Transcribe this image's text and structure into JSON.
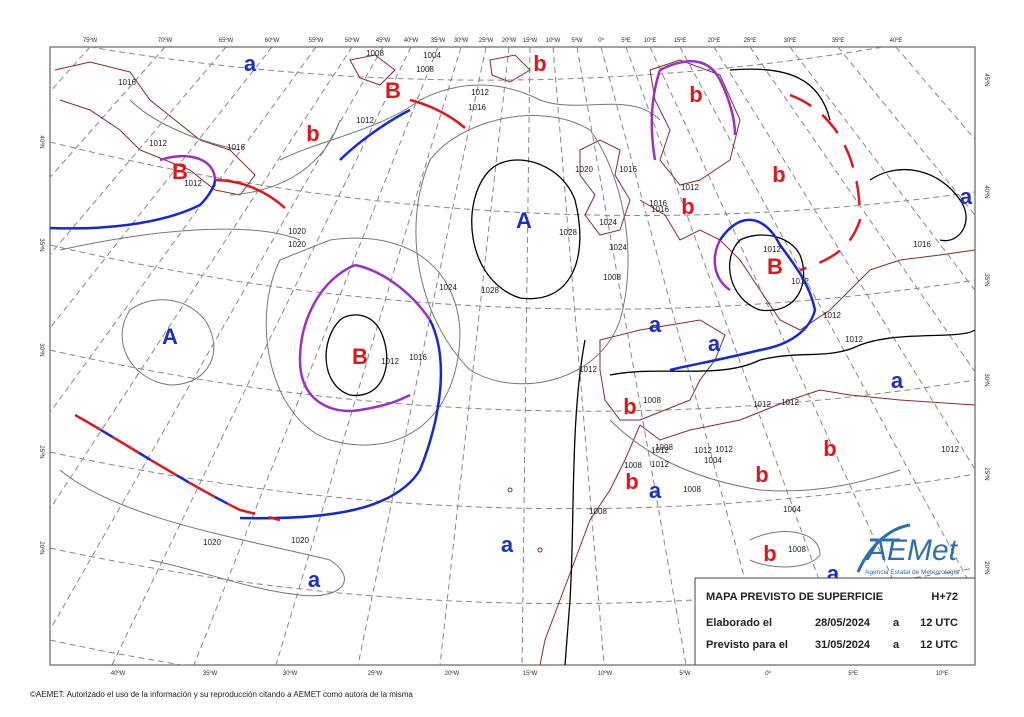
{
  "top_axis_labels": [
    "75ºW",
    "70ºW",
    "65ºW",
    "60ºW",
    "55ºW",
    "50ºW",
    "45ºW",
    "40ºW",
    "35ºW",
    "30ºW",
    "25ºW",
    "20ºW",
    "15ºW",
    "10ºW",
    "5ºW",
    "0º",
    "5ºE",
    "10ºE",
    "15ºE",
    "20ºE",
    "25ºE",
    "30ºE",
    "35ºE",
    "40ºE"
  ],
  "bottom_axis_labels": [
    "40ºW",
    "35ºW",
    "30ºW",
    "25ºW",
    "20ºW",
    "15ºW",
    "10ºW",
    "5ºW",
    "0º",
    "5ºE",
    "10ºE"
  ],
  "right_axis_labels": [
    "45ºN",
    "40ºN",
    "35ºN",
    "30ºN",
    "25ºN",
    "20ºN"
  ],
  "left_axis_labels": [
    "40ºN",
    "35ºN",
    "30ºN",
    "25ºN",
    "20ºN"
  ],
  "pressure_centers": [
    {
      "label": "a",
      "color": "#1a2fc8"
    },
    {
      "label": "b",
      "color": "#e0161b"
    },
    {
      "label": "B",
      "color": "#e0161b"
    },
    {
      "label": "b",
      "color": "#e0161b"
    },
    {
      "label": "b",
      "color": "#e0161b"
    },
    {
      "label": "B",
      "color": "#e0161b"
    },
    {
      "label": "b",
      "color": "#e0161b"
    },
    {
      "label": "b",
      "color": "#e0161b"
    },
    {
      "label": "A",
      "color": "#1a2fc8"
    },
    {
      "label": "B",
      "color": "#e0161b"
    },
    {
      "label": "a",
      "color": "#1a2fc8"
    },
    {
      "label": "A",
      "color": "#1a2fc8"
    },
    {
      "label": "B",
      "color": "#e0161b"
    },
    {
      "label": "a",
      "color": "#1a2fc8"
    },
    {
      "label": "a",
      "color": "#1a2fc8"
    },
    {
      "label": "a",
      "color": "#1a2fc8"
    },
    {
      "label": "b",
      "color": "#e0161b"
    },
    {
      "label": "b",
      "color": "#e0161b"
    },
    {
      "label": "b",
      "color": "#e0161b"
    },
    {
      "label": "b",
      "color": "#e0161b"
    },
    {
      "label": "a",
      "color": "#1a2fc8"
    },
    {
      "label": "a",
      "color": "#1a2fc8"
    },
    {
      "label": "a",
      "color": "#1a2fc8"
    },
    {
      "label": "b",
      "color": "#e0161b"
    },
    {
      "label": "a",
      "color": "#1a2fc8"
    }
  ],
  "isobar_labels": [
    "1008",
    "1004",
    "1008",
    "1012",
    "1016",
    "1012",
    "1016",
    "1012",
    "1012",
    "1016",
    "1020",
    "1020",
    "1024",
    "1028",
    "1028",
    "1024",
    "1012",
    "1016",
    "1016",
    "1012",
    "1012",
    "1016",
    "1012",
    "1008",
    "1012",
    "1012",
    "1012",
    "1012",
    "1012",
    "1008",
    "1008",
    "1012",
    "1012",
    "1008",
    "1008",
    "1004",
    "1008",
    "1004",
    "1020",
    "1020",
    "1008",
    "1012",
    "1012",
    "1016",
    "1020",
    "1016",
    "1024",
    "1012"
  ],
  "info_box": {
    "title": "MAPA PREVISTO DE SUPERFICIE",
    "lead": "H+72",
    "rows": [
      [
        "Elaborado el",
        "28/05/2024",
        "a",
        "12 UTC"
      ],
      [
        "Previsto para el",
        "31/05/2024",
        "a",
        "12 UTC"
      ]
    ]
  },
  "logo": {
    "name": "AEMet",
    "subtitle": "Agencia Estatal de Meteorología"
  },
  "footer": "©AEMET. Autorizado el uso de la información y su reproducción citando a AEMET como autora de la misma"
}
